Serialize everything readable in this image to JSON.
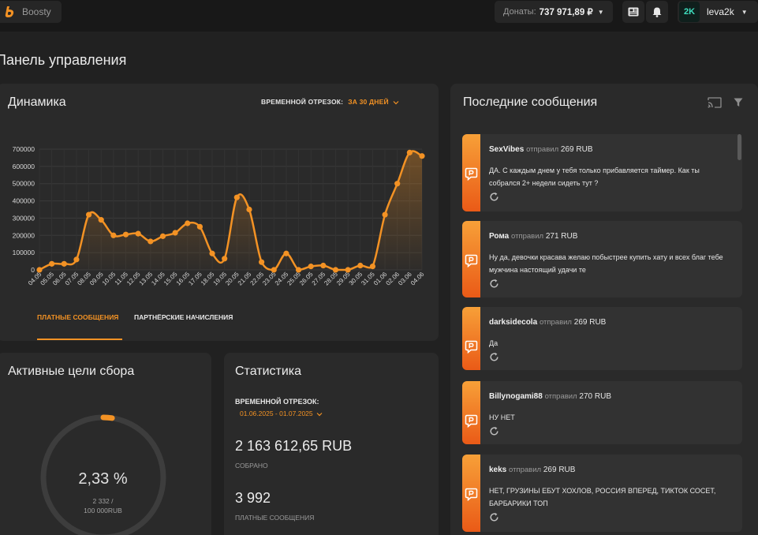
{
  "header": {
    "brand": "Boosty",
    "donations_label": "Донаты:",
    "donations_value": "737 971,89 ₽",
    "user_initials": "2K",
    "username": "leva2k"
  },
  "page_title": "Панель управления",
  "dynamics": {
    "title": "Динамика",
    "period_label": "ВРЕМЕННОЙ ОТРЕЗОК:",
    "period_value": "ЗА 30 ДНЕЙ",
    "tabs": [
      "ПЛАТНЫЕ СООБЩЕНИЯ",
      "ПАРТНЁРСКИЕ НАЧИСЛЕНИЯ"
    ],
    "active_tab": 0
  },
  "chart_data": {
    "type": "line",
    "title": "",
    "xlabel": "",
    "ylabel": "",
    "ylim": [
      0,
      700000
    ],
    "grid": true,
    "yticks": [
      "0",
      "100000",
      "200000",
      "300000",
      "400000",
      "500000",
      "600000",
      "700000"
    ],
    "x": [
      "04.05",
      "05.05",
      "06.05",
      "07.05",
      "08.05",
      "09.05",
      "10.05",
      "11.05",
      "12.05",
      "13.05",
      "14.05",
      "15.05",
      "16.05",
      "17.05",
      "18.05",
      "19.05",
      "20.05",
      "21.05",
      "22.05",
      "23.05",
      "24.05",
      "25.05",
      "26.05",
      "27.05",
      "28.05",
      "29.05",
      "30.05",
      "31.05",
      "01.06",
      "02.06",
      "03.06",
      "04.06"
    ],
    "series": [
      {
        "color": "#f39224",
        "values": [
          0,
          35000,
          35000,
          60000,
          320000,
          290000,
          200000,
          205000,
          210000,
          165000,
          195000,
          215000,
          270000,
          250000,
          95000,
          65000,
          420000,
          350000,
          45000,
          0,
          95000,
          0,
          20000,
          25000,
          0,
          0,
          25000,
          20000,
          320000,
          500000,
          680000,
          660000
        ]
      }
    ]
  },
  "goals": {
    "title": "Активные цели сбора",
    "percent_text": "2,33 %",
    "progress": 0.0233,
    "amount_line1": "2 332 /",
    "amount_line2": "100 000RUB"
  },
  "stats": {
    "title": "Статистика",
    "period_label": "ВРЕМЕННОЙ ОТРЕЗОК:",
    "period_value": "01.06.2025 - 01.07.2025",
    "collected_value": "2 163 612,65 RUB",
    "collected_label": "СОБРАНО",
    "paid_value": "3 992",
    "paid_label": "ПЛАТНЫЕ СООБЩЕНИЯ"
  },
  "messages": {
    "title": "Последние сообщения",
    "action_word": "отправил",
    "items": [
      {
        "name": "SexVibes",
        "amount": "269 RUB",
        "text": "ДА. С каждым днем у тебя только прибавляется таймер. Как ты собрался 2+ недели сидеть тут ?"
      },
      {
        "name": "Рома",
        "amount": "271 RUB",
        "text": "Ну да, девочки красава желаю побыстрее купить хату и всех благ тебе мужчина настоящий удачи те"
      },
      {
        "name": "darksidecola",
        "amount": "269 RUB",
        "text": "Да"
      },
      {
        "name": "Billynogami88",
        "amount": "270 RUB",
        "text": "НУ НЕТ"
      },
      {
        "name": "keks",
        "amount": "269 RUB",
        "text": "НЕТ, ГРУЗИНЫ ЕБУТ ХОХЛОВ, РОССИЯ ВПЕРЕД, ТИКТОК СОСЕТ, БАРБАРИКИ ТОП"
      }
    ]
  },
  "colors": {
    "accent": "#f39224",
    "background": "#212121",
    "card": "#2a2a2a",
    "message_card": "#323232"
  }
}
